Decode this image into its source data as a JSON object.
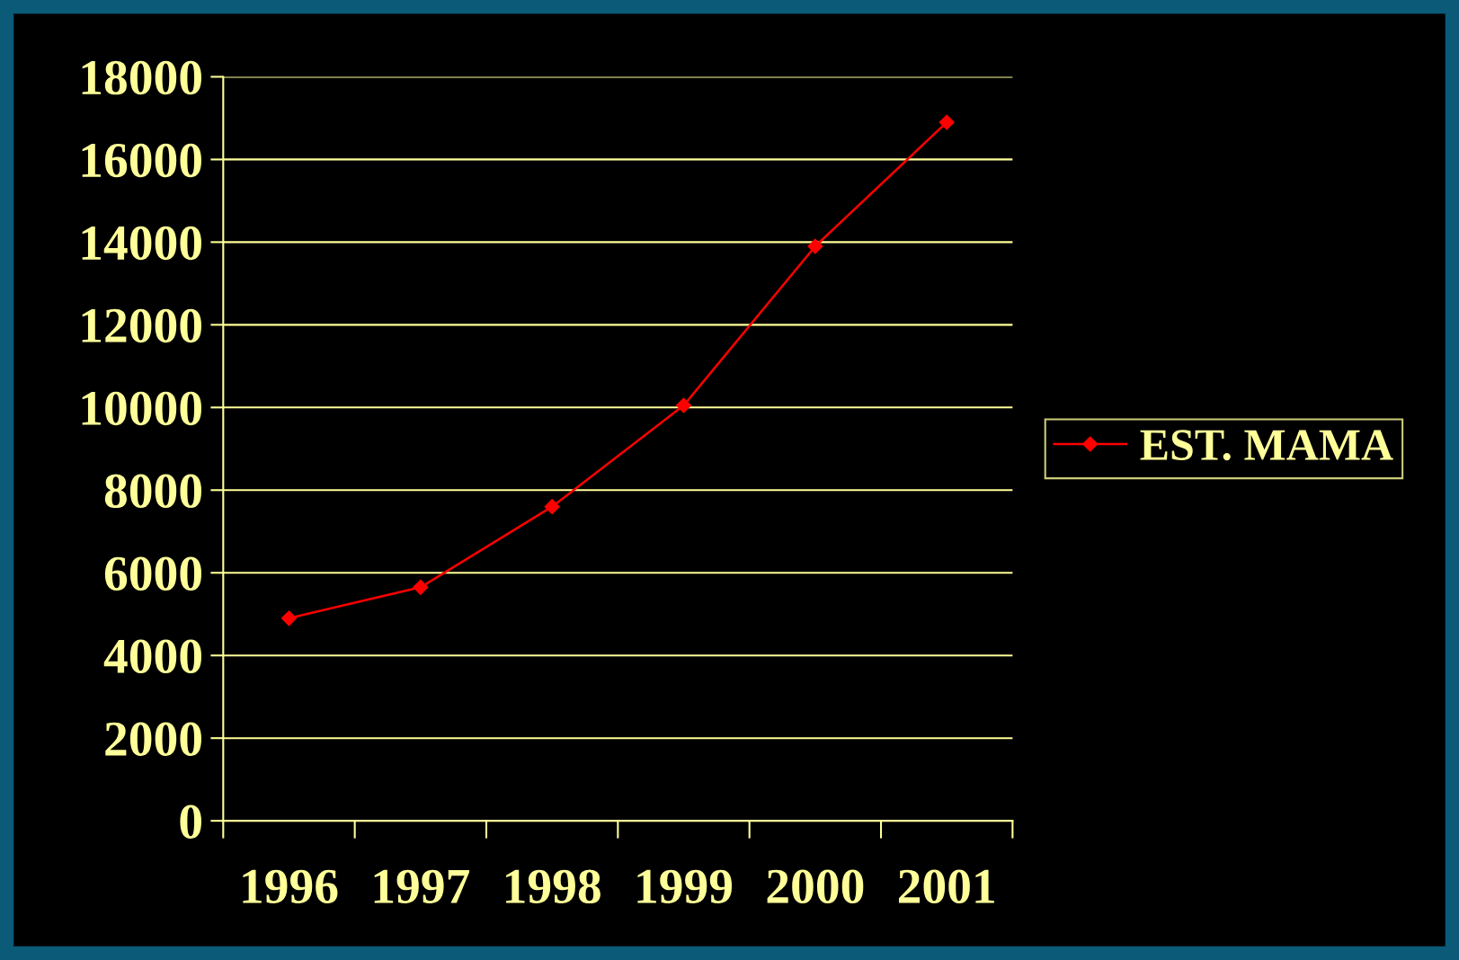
{
  "chart_data": {
    "type": "line",
    "categories": [
      "1996",
      "1997",
      "1998",
      "1999",
      "2000",
      "2001"
    ],
    "series": [
      {
        "name": "EST. MAMA",
        "color": "#ff0000",
        "values": [
          4900,
          5650,
          7600,
          10050,
          13900,
          16900
        ]
      }
    ],
    "ylim": [
      0,
      18000
    ],
    "yticks": [
      0,
      2000,
      4000,
      6000,
      8000,
      10000,
      12000,
      14000,
      16000,
      18000
    ],
    "grid": "y",
    "legend": "right",
    "marker": "diamond",
    "line_style": "solid"
  }
}
